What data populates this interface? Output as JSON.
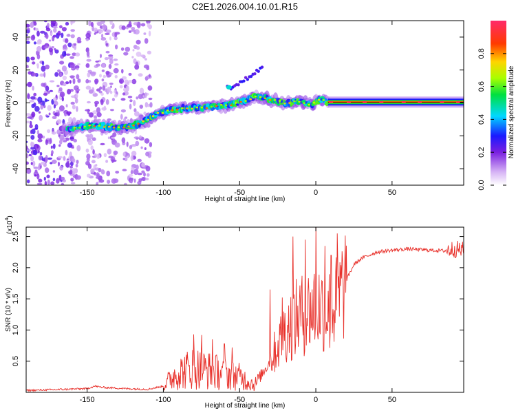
{
  "title": "C2E1.2026.004.10.01.R15",
  "colors": {
    "snr_line": "#e8302a",
    "axis": "#000000",
    "center_line": "#000000"
  },
  "chart_data": [
    {
      "type": "heatmap",
      "name": "spectrogram",
      "xlabel": "Height of straight line (km)",
      "ylabel": "Frequency (Hz)",
      "xlim": [
        -190,
        97
      ],
      "ylim": [
        -50,
        50
      ],
      "xticks": [
        -150,
        -100,
        -50,
        0,
        50
      ],
      "xtick_labels": [
        "-150",
        "-100",
        "-50",
        "0",
        "50"
      ],
      "yticks": [
        -40,
        -20,
        0,
        20,
        40
      ],
      "ytick_labels": [
        "-40",
        "-20",
        "0",
        "20",
        "40"
      ],
      "colorbar": {
        "label": "Normalized spectral amplitude",
        "range": [
          0,
          1
        ],
        "ticks": [
          0.0,
          0.2,
          0.4,
          0.6,
          0.8
        ],
        "tick_labels": [
          "0.0",
          "0.2",
          "0.4",
          "0.6",
          "0.8"
        ]
      },
      "ridge": {
        "x": [
          -162,
          -150,
          -140,
          -130,
          -120,
          -112,
          -105,
          -95,
          -85,
          -75,
          -65,
          -55,
          -45,
          -38,
          -30,
          -20,
          -10,
          -3,
          0,
          3,
          8,
          20,
          40,
          60,
          80,
          95
        ],
        "y": [
          -16,
          -14,
          -14,
          -15,
          -14,
          -11,
          -7,
          -4,
          -3,
          -3,
          -2,
          -1,
          2,
          4,
          2,
          0,
          1,
          -1,
          1,
          2,
          0.5,
          0.5,
          0.5,
          0.5,
          0.5,
          0.5
        ]
      },
      "side_branch": {
        "x": [
          -58,
          -50,
          -45,
          -40,
          -35
        ],
        "y": [
          9,
          12,
          15,
          18,
          21
        ]
      }
    },
    {
      "type": "line",
      "name": "snr",
      "xlabel": "Height of straight line (km)",
      "ylabel": "SNR (10 * v/v)",
      "scale_label": "(x10",
      "scale_exponent": "4",
      "scale_close": ")",
      "xlim": [
        -190,
        97
      ],
      "ylim": [
        0,
        2.65
      ],
      "xticks": [
        -150,
        -100,
        -50,
        0,
        50
      ],
      "xtick_labels": [
        "-150",
        "-100",
        "-50",
        "0",
        "50"
      ],
      "yticks": [
        0.5,
        1.0,
        1.5,
        2.0,
        2.5
      ],
      "ytick_labels": [
        "0.5",
        "1.0",
        "1.5",
        "2.0",
        "2.5"
      ],
      "envelope": {
        "x": [
          -190,
          -150,
          -145,
          -140,
          -125,
          -110,
          -100,
          -92,
          -80,
          -70,
          -60,
          -50,
          -40,
          -30,
          -20,
          -12,
          -5,
          0,
          5,
          10,
          15,
          20,
          25,
          30,
          40,
          50,
          60,
          75,
          85,
          90,
          97
        ],
        "y": [
          0.03,
          0.06,
          0.1,
          0.08,
          0.06,
          0.05,
          0.1,
          0.3,
          0.4,
          0.35,
          0.3,
          0.25,
          0.12,
          0.5,
          1.0,
          1.2,
          1.3,
          1.4,
          1.35,
          1.3,
          1.5,
          1.8,
          2.05,
          2.15,
          2.25,
          2.28,
          2.3,
          2.28,
          2.27,
          2.3,
          2.28
        ]
      },
      "peaks": {
        "x": [
          -80,
          -75,
          -68,
          -60,
          -55,
          -30,
          -22,
          -15,
          -7,
          0,
          6,
          10,
          14
        ],
        "y": [
          0.93,
          0.92,
          0.85,
          0.78,
          0.72,
          1.65,
          1.52,
          2.5,
          2.45,
          2.65,
          2.35,
          2.2,
          2.55
        ]
      }
    }
  ]
}
